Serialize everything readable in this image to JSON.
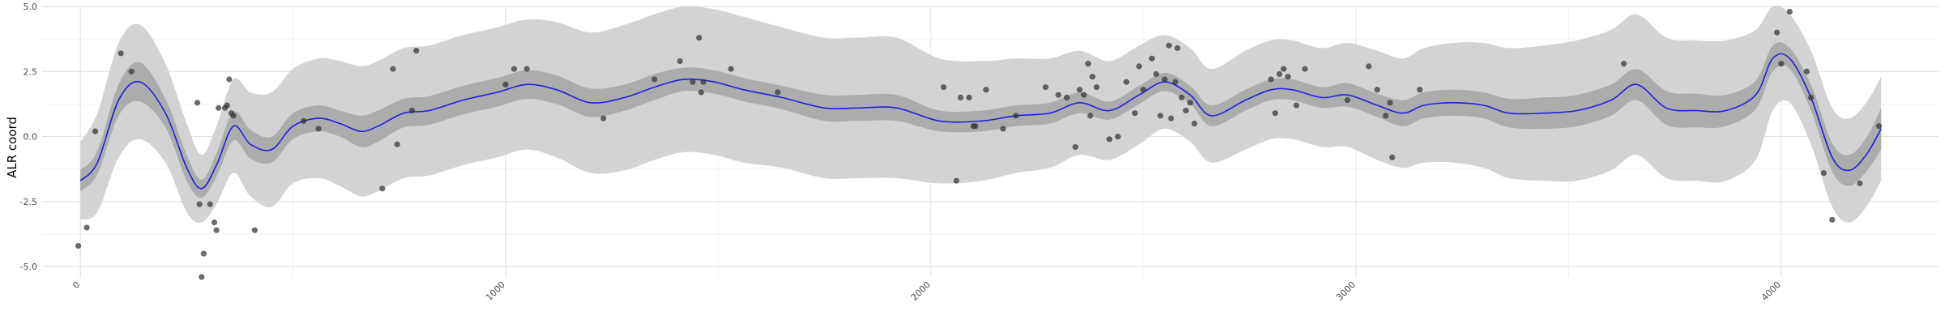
{
  "chart_data": {
    "type": "line",
    "title": "",
    "xlabel": "",
    "ylabel": "ALR coord",
    "xlim": [
      -90,
      4370
    ],
    "ylim": [
      -5.4,
      5.0
    ],
    "x_ticks": [
      0,
      1000,
      2000,
      3000,
      4000
    ],
    "x_tick_labels": [
      "0",
      "1000",
      "2000",
      "3000",
      "4000"
    ],
    "x_tick_label_rotation_deg": -45,
    "y_ticks": [
      -5.0,
      -2.5,
      0.0,
      2.5,
      5.0
    ],
    "y_tick_labels": [
      "-5.0",
      "-2.5",
      "0.0",
      "2.5",
      "5.0"
    ],
    "grid": true,
    "legend": "none",
    "colors": {
      "panel_background": "#ffffff",
      "grid_major": "#e3e3e3",
      "grid_minor": "#f1f1f1",
      "outer_band": "#d3d3d3",
      "inner_band": "#acacac",
      "line": "#1f1fe0",
      "points": "#333333"
    },
    "smooth_x": [
      0,
      40,
      90,
      140,
      200,
      250,
      285,
      320,
      360,
      400,
      450,
      500,
      560,
      610,
      660,
      700,
      760,
      820,
      900,
      980,
      1050,
      1120,
      1200,
      1280,
      1350,
      1420,
      1490,
      1560,
      1650,
      1750,
      1830,
      1920,
      2020,
      2120,
      2200,
      2280,
      2350,
      2420,
      2490,
      2550,
      2610,
      2660,
      2740,
      2800,
      2850,
      2920,
      2980,
      3050,
      3110,
      3160,
      3230,
      3300,
      3360,
      3440,
      3520,
      3600,
      3660,
      3730,
      3800,
      3870,
      3940,
      3980,
      4020,
      4070,
      4120,
      4160,
      4200,
      4235
    ],
    "smooth_y": [
      -1.7,
      -1.0,
      1.4,
      2.1,
      0.9,
      -1.2,
      -2.0,
      -1.1,
      0.4,
      -0.3,
      -0.5,
      0.4,
      0.7,
      0.5,
      0.2,
      0.4,
      0.9,
      1.0,
      1.4,
      1.7,
      2.0,
      1.8,
      1.3,
      1.5,
      1.9,
      2.2,
      2.1,
      1.8,
      1.5,
      1.1,
      1.1,
      1.1,
      0.6,
      0.6,
      0.8,
      0.9,
      1.3,
      1.0,
      1.6,
      2.1,
      1.6,
      0.8,
      1.4,
      1.8,
      1.8,
      1.5,
      1.6,
      1.2,
      0.9,
      1.2,
      1.3,
      1.2,
      0.9,
      0.9,
      1.0,
      1.4,
      2.0,
      1.1,
      1.0,
      1.0,
      1.6,
      3.0,
      3.0,
      1.5,
      -0.8,
      -1.3,
      -0.7,
      0.3
    ],
    "inner_band_halfwidth": [
      0.4,
      0.45,
      0.6,
      0.75,
      0.55,
      0.5,
      0.35,
      0.45,
      0.55,
      0.55,
      0.5,
      0.5,
      0.5,
      0.5,
      0.6,
      0.6,
      0.55,
      0.55,
      0.55,
      0.55,
      0.55,
      0.55,
      0.55,
      0.5,
      0.5,
      0.45,
      0.45,
      0.45,
      0.45,
      0.5,
      0.5,
      0.5,
      0.4,
      0.4,
      0.4,
      0.4,
      0.4,
      0.35,
      0.35,
      0.35,
      0.35,
      0.4,
      0.4,
      0.4,
      0.4,
      0.4,
      0.45,
      0.45,
      0.5,
      0.5,
      0.5,
      0.5,
      0.55,
      0.6,
      0.6,
      0.6,
      0.6,
      0.65,
      0.65,
      0.6,
      0.55,
      0.5,
      0.4,
      0.5,
      0.55,
      0.6,
      0.65,
      0.8
    ],
    "outer_band_halfwidth": [
      1.5,
      1.9,
      2.2,
      2.2,
      1.9,
      1.7,
      1.3,
      1.5,
      1.8,
      2.0,
      2.2,
      2.2,
      2.3,
      2.4,
      2.5,
      2.5,
      2.5,
      2.5,
      2.5,
      2.5,
      2.5,
      2.6,
      2.7,
      2.8,
      2.8,
      2.8,
      2.8,
      2.8,
      2.7,
      2.7,
      2.7,
      2.7,
      2.4,
      2.3,
      2.2,
      2.1,
      2.0,
      1.9,
      1.9,
      1.8,
      1.8,
      1.8,
      1.9,
      1.9,
      1.9,
      1.9,
      2.0,
      2.1,
      2.1,
      2.2,
      2.3,
      2.4,
      2.5,
      2.6,
      2.7,
      2.7,
      2.7,
      2.7,
      2.7,
      2.7,
      2.5,
      2.0,
      1.7,
      1.8,
      1.9,
      2.0,
      2.0,
      2.0
    ],
    "points": [
      {
        "x": -5,
        "y": -4.2
      },
      {
        "x": 15,
        "y": -3.5
      },
      {
        "x": 35,
        "y": 0.2
      },
      {
        "x": 95,
        "y": 3.2
      },
      {
        "x": 120,
        "y": 2.5
      },
      {
        "x": 275,
        "y": 1.3
      },
      {
        "x": 280,
        "y": -2.6
      },
      {
        "x": 285,
        "y": -5.4
      },
      {
        "x": 290,
        "y": -4.5
      },
      {
        "x": 305,
        "y": -2.6
      },
      {
        "x": 315,
        "y": -3.3
      },
      {
        "x": 320,
        "y": -3.6
      },
      {
        "x": 325,
        "y": 1.1
      },
      {
        "x": 340,
        "y": 1.1
      },
      {
        "x": 345,
        "y": 1.2
      },
      {
        "x": 350,
        "y": 2.2
      },
      {
        "x": 355,
        "y": 0.9
      },
      {
        "x": 360,
        "y": 0.8
      },
      {
        "x": 410,
        "y": -3.6
      },
      {
        "x": 525,
        "y": 0.6
      },
      {
        "x": 560,
        "y": 0.3
      },
      {
        "x": 710,
        "y": -2.0
      },
      {
        "x": 735,
        "y": 2.6
      },
      {
        "x": 745,
        "y": -0.3
      },
      {
        "x": 780,
        "y": 1.0
      },
      {
        "x": 790,
        "y": 3.3
      },
      {
        "x": 1000,
        "y": 2.0
      },
      {
        "x": 1020,
        "y": 2.6
      },
      {
        "x": 1050,
        "y": 2.6
      },
      {
        "x": 1230,
        "y": 0.7
      },
      {
        "x": 1350,
        "y": 2.2
      },
      {
        "x": 1410,
        "y": 2.9
      },
      {
        "x": 1440,
        "y": 2.1
      },
      {
        "x": 1455,
        "y": 3.8
      },
      {
        "x": 1460,
        "y": 1.7
      },
      {
        "x": 1465,
        "y": 2.1
      },
      {
        "x": 1530,
        "y": 2.6
      },
      {
        "x": 1640,
        "y": 1.7
      },
      {
        "x": 2030,
        "y": 1.9
      },
      {
        "x": 2060,
        "y": -1.7
      },
      {
        "x": 2070,
        "y": 1.5
      },
      {
        "x": 2090,
        "y": 1.5
      },
      {
        "x": 2100,
        "y": 0.4
      },
      {
        "x": 2105,
        "y": 0.4
      },
      {
        "x": 2130,
        "y": 1.8
      },
      {
        "x": 2170,
        "y": 0.3
      },
      {
        "x": 2200,
        "y": 0.8
      },
      {
        "x": 2270,
        "y": 1.9
      },
      {
        "x": 2300,
        "y": 1.6
      },
      {
        "x": 2320,
        "y": 1.5
      },
      {
        "x": 2340,
        "y": -0.4
      },
      {
        "x": 2350,
        "y": 1.8
      },
      {
        "x": 2360,
        "y": 1.6
      },
      {
        "x": 2370,
        "y": 2.8
      },
      {
        "x": 2375,
        "y": 0.8
      },
      {
        "x": 2380,
        "y": 2.3
      },
      {
        "x": 2390,
        "y": 1.9
      },
      {
        "x": 2420,
        "y": -0.1
      },
      {
        "x": 2440,
        "y": 0.0
      },
      {
        "x": 2460,
        "y": 2.1
      },
      {
        "x": 2480,
        "y": 0.9
      },
      {
        "x": 2490,
        "y": 2.7
      },
      {
        "x": 2500,
        "y": 1.8
      },
      {
        "x": 2520,
        "y": 3.0
      },
      {
        "x": 2530,
        "y": 2.4
      },
      {
        "x": 2540,
        "y": 0.8
      },
      {
        "x": 2550,
        "y": 2.2
      },
      {
        "x": 2560,
        "y": 3.5
      },
      {
        "x": 2565,
        "y": 0.7
      },
      {
        "x": 2575,
        "y": 2.1
      },
      {
        "x": 2580,
        "y": 3.4
      },
      {
        "x": 2590,
        "y": 1.5
      },
      {
        "x": 2600,
        "y": 1.0
      },
      {
        "x": 2610,
        "y": 1.3
      },
      {
        "x": 2620,
        "y": 0.5
      },
      {
        "x": 2800,
        "y": 2.2
      },
      {
        "x": 2810,
        "y": 0.9
      },
      {
        "x": 2820,
        "y": 2.4
      },
      {
        "x": 2830,
        "y": 2.6
      },
      {
        "x": 2840,
        "y": 2.3
      },
      {
        "x": 2860,
        "y": 1.2
      },
      {
        "x": 2880,
        "y": 2.6
      },
      {
        "x": 2980,
        "y": 1.4
      },
      {
        "x": 3030,
        "y": 2.7
      },
      {
        "x": 3050,
        "y": 1.8
      },
      {
        "x": 3070,
        "y": 0.8
      },
      {
        "x": 3080,
        "y": 1.3
      },
      {
        "x": 3085,
        "y": -0.8
      },
      {
        "x": 3150,
        "y": 1.8
      },
      {
        "x": 3630,
        "y": 2.8
      },
      {
        "x": 3990,
        "y": 4.0
      },
      {
        "x": 4000,
        "y": 2.8
      },
      {
        "x": 4020,
        "y": 4.8
      },
      {
        "x": 4060,
        "y": 2.5
      },
      {
        "x": 4070,
        "y": 1.5
      },
      {
        "x": 4100,
        "y": -1.4
      },
      {
        "x": 4120,
        "y": -3.2
      },
      {
        "x": 4185,
        "y": -1.8
      },
      {
        "x": 4230,
        "y": 0.4
      }
    ]
  }
}
